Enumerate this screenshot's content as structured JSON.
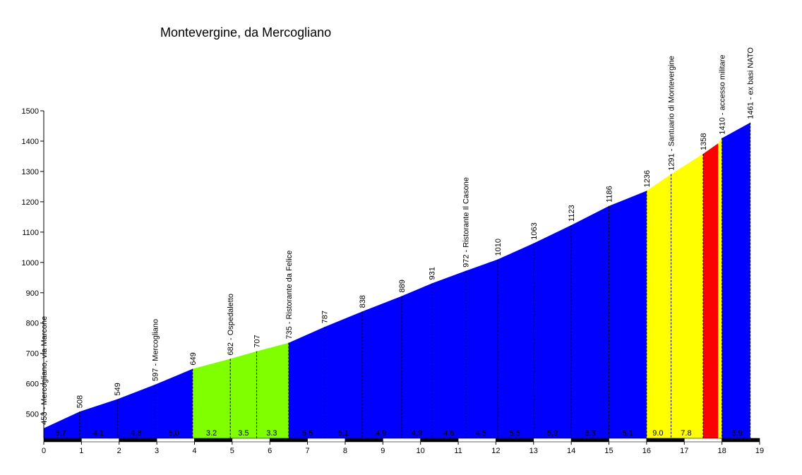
{
  "chart_data": {
    "type": "area",
    "title": "Montevergine, da Mercogliano",
    "xlabel": "",
    "ylabel": "",
    "xlim": [
      0,
      19
    ],
    "ylim": [
      420,
      1500
    ],
    "x_ticks": [
      0,
      1,
      2,
      3,
      4,
      5,
      6,
      7,
      8,
      9,
      10,
      11,
      12,
      13,
      14,
      15,
      16,
      17,
      18,
      19
    ],
    "y_ticks": [
      500,
      600,
      700,
      800,
      900,
      1000,
      1100,
      1200,
      1300,
      1400,
      1500
    ],
    "profile": [
      {
        "x": 0,
        "y": 453
      },
      {
        "x": 0.95,
        "y": 508
      },
      {
        "x": 1.95,
        "y": 549
      },
      {
        "x": 2.95,
        "y": 597
      },
      {
        "x": 3.95,
        "y": 649
      },
      {
        "x": 4.95,
        "y": 682
      },
      {
        "x": 5.65,
        "y": 707
      },
      {
        "x": 6.5,
        "y": 735
      },
      {
        "x": 7.45,
        "y": 787
      },
      {
        "x": 8.45,
        "y": 838
      },
      {
        "x": 9.5,
        "y": 889
      },
      {
        "x": 10.3,
        "y": 931
      },
      {
        "x": 11.2,
        "y": 972
      },
      {
        "x": 12.05,
        "y": 1010
      },
      {
        "x": 13.0,
        "y": 1063
      },
      {
        "x": 14.0,
        "y": 1123
      },
      {
        "x": 15.0,
        "y": 1186
      },
      {
        "x": 16.0,
        "y": 1236
      },
      {
        "x": 16.65,
        "y": 1291
      },
      {
        "x": 17.5,
        "y": 1358
      },
      {
        "x": 17.9,
        "y": 1393
      },
      {
        "x": 18.0,
        "y": 1410
      },
      {
        "x": 18.75,
        "y": 1461
      }
    ],
    "segments": [
      {
        "x0": 0,
        "x1": 3.95,
        "color": "#0000ff",
        "grades": [
          {
            "x": 0.45,
            "g": "5.7"
          },
          {
            "x": 1.45,
            "g": "4.1"
          },
          {
            "x": 2.45,
            "g": "4.8"
          },
          {
            "x": 3.45,
            "g": "5.0"
          }
        ]
      },
      {
        "x0": 3.95,
        "x1": 6.5,
        "color": "#80ff00",
        "grades": [
          {
            "x": 4.45,
            "g": "3.2"
          },
          {
            "x": 5.3,
            "g": "3.5"
          },
          {
            "x": 6.05,
            "g": "3.3"
          }
        ]
      },
      {
        "x0": 6.5,
        "x1": 16.0,
        "color": "#0000ff",
        "grades": [
          {
            "x": 7.0,
            "g": "5.5"
          },
          {
            "x": 7.95,
            "g": "5.1"
          },
          {
            "x": 8.95,
            "g": "4.9"
          },
          {
            "x": 9.9,
            "g": "4.9"
          },
          {
            "x": 10.75,
            "g": "4.6"
          },
          {
            "x": 11.6,
            "g": "4.5"
          },
          {
            "x": 12.5,
            "g": "5.5"
          },
          {
            "x": 13.5,
            "g": "5.9"
          },
          {
            "x": 14.5,
            "g": "6.3"
          },
          {
            "x": 15.5,
            "g": "5.1"
          }
        ]
      },
      {
        "x0": 16.0,
        "x1": 17.5,
        "color": "#ffff00",
        "grades": [
          {
            "x": 16.3,
            "g": "9.0"
          },
          {
            "x": 17.05,
            "g": "7.8"
          }
        ]
      },
      {
        "x0": 17.5,
        "x1": 17.9,
        "color": "#ff0000",
        "grades": []
      },
      {
        "x0": 17.9,
        "x1": 18.0,
        "color": "#ffff00",
        "grades": []
      },
      {
        "x0": 18.0,
        "x1": 18.75,
        "color": "#0000ff",
        "grades": [
          {
            "x": 18.4,
            "g": "6.9"
          }
        ]
      }
    ],
    "waypoints": [
      {
        "x": 0,
        "label": "453 - Mercogliano, via Marcone"
      },
      {
        "x": 0.95,
        "label": "508"
      },
      {
        "x": 1.95,
        "label": "549"
      },
      {
        "x": 2.95,
        "label": "597 - Mercogliano"
      },
      {
        "x": 3.95,
        "label": "649"
      },
      {
        "x": 4.95,
        "label": "682 - Ospedaletto"
      },
      {
        "x": 5.65,
        "label": "707"
      },
      {
        "x": 6.5,
        "label": "735 - Ristorante da Felice"
      },
      {
        "x": 7.45,
        "label": "787"
      },
      {
        "x": 8.45,
        "label": "838"
      },
      {
        "x": 9.5,
        "label": "889"
      },
      {
        "x": 10.3,
        "label": "931"
      },
      {
        "x": 11.2,
        "label": "972 - Ristorante Il Casone"
      },
      {
        "x": 12.05,
        "label": "1010"
      },
      {
        "x": 13.0,
        "label": "1063"
      },
      {
        "x": 14.0,
        "label": "1123"
      },
      {
        "x": 15.0,
        "label": "1186"
      },
      {
        "x": 16.0,
        "label": "1236"
      },
      {
        "x": 16.65,
        "label": "1291 - Santuario di Montevergine"
      },
      {
        "x": 17.5,
        "label": "1358"
      },
      {
        "x": 18.0,
        "label": "1410 - accesso militare"
      },
      {
        "x": 18.75,
        "label": "1461 - ex basi NATO"
      }
    ],
    "grid": false,
    "colors": {
      "gentle": "#80ff00",
      "normal": "#0000ff",
      "steep": "#ffff00",
      "very_steep": "#ff0000"
    }
  }
}
